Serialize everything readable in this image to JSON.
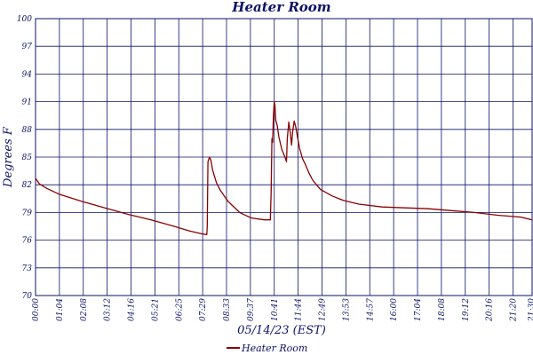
{
  "chart_data": {
    "type": "line",
    "title": "Heater Room",
    "xlabel": "05/14/23 (EST)",
    "ylabel": "Degrees F",
    "y_tick_labels": [
      "70",
      "73",
      "76",
      "79",
      "82",
      "85",
      "88",
      "91",
      "94",
      "97",
      "100"
    ],
    "ylim": [
      70,
      100
    ],
    "x_tick_labels": [
      "00:00",
      "01:04",
      "02:08",
      "03:12",
      "04:16",
      "05:21",
      "06:25",
      "07:29",
      "08:33",
      "09:37",
      "10:41",
      "11:44",
      "12:49",
      "13:53",
      "14:57",
      "16:00",
      "17:04",
      "18:08",
      "19:12",
      "20:16",
      "21:20",
      "21:30"
    ],
    "xlim_minutes": [
      0,
      1290
    ],
    "grid": true,
    "legend_position": "bottom-center",
    "colors": {
      "series": "#8b0000",
      "axis": "#0b1266",
      "grid": "#0b1266"
    },
    "series": [
      {
        "name": "Heater Room",
        "x_minutes": [
          0,
          10,
          30,
          60,
          120,
          180,
          240,
          300,
          360,
          400,
          430,
          445,
          446,
          448,
          452,
          456,
          460,
          470,
          480,
          500,
          530,
          560,
          595,
          610,
          612,
          614,
          616,
          618,
          620,
          622,
          624,
          628,
          632,
          640,
          648,
          652,
          654,
          658,
          662,
          665,
          668,
          672,
          676,
          680,
          686,
          694,
          700,
          710,
          720,
          740,
          770,
          800,
          840,
          900,
          960,
          1020,
          1080,
          1140,
          1200,
          1260,
          1290
        ],
        "values": [
          82.7,
          82.1,
          81.6,
          81.0,
          80.2,
          79.5,
          78.8,
          78.2,
          77.5,
          77.0,
          76.7,
          76.6,
          77.5,
          84.5,
          85.0,
          84.6,
          83.6,
          82.2,
          81.4,
          80.2,
          79.0,
          78.4,
          78.2,
          78.2,
          81.0,
          87.0,
          86.6,
          89.5,
          91.0,
          90.6,
          89.0,
          88.4,
          87.2,
          85.8,
          85.0,
          84.5,
          87.0,
          88.8,
          87.5,
          86.3,
          87.8,
          88.9,
          88.3,
          87.3,
          85.9,
          84.8,
          84.3,
          83.3,
          82.5,
          81.5,
          80.8,
          80.3,
          79.9,
          79.6,
          79.5,
          79.4,
          79.2,
          79.0,
          78.7,
          78.5,
          78.2
        ]
      }
    ]
  }
}
